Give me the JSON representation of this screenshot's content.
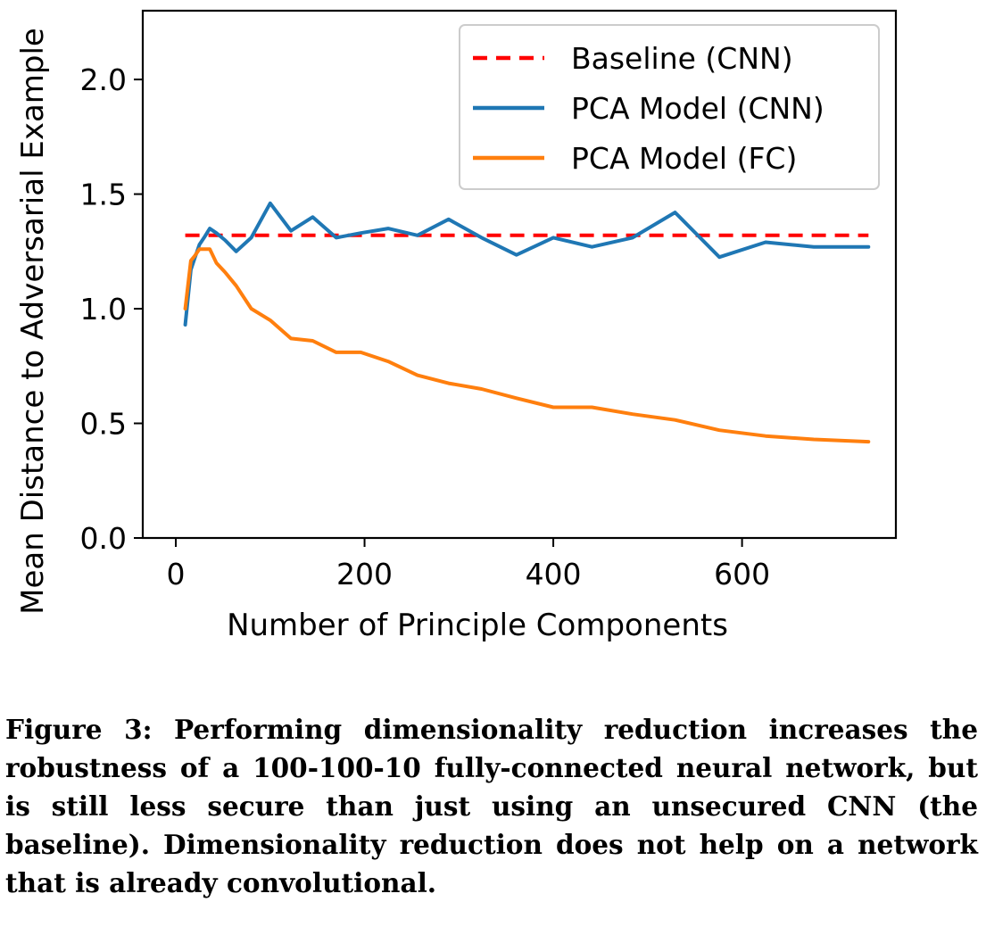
{
  "chart_data": {
    "type": "line",
    "xlabel": "Number of Principle Components",
    "ylabel": "Mean Distance to Adversarial Example",
    "xlim": [
      -35,
      763
    ],
    "ylim": [
      0.0,
      2.3
    ],
    "xticks": [
      0,
      200,
      400,
      600
    ],
    "xtick_labels": [
      "0",
      "200",
      "400",
      "600"
    ],
    "yticks": [
      0.0,
      0.5,
      1.0,
      1.5,
      2.0
    ],
    "ytick_labels": [
      "0.0",
      "0.5",
      "1.0",
      "1.5",
      "2.0"
    ],
    "grid": false,
    "legend_position": "top-right",
    "series": [
      {
        "name": "Baseline (CNN)",
        "style": "dashed",
        "color": "#ff0000",
        "x": [
          10,
          734
        ],
        "y": [
          1.32,
          1.32
        ]
      },
      {
        "name": "PCA Model (CNN)",
        "style": "solid",
        "color": "#1f77b4",
        "x": [
          10,
          16,
          20,
          25,
          30,
          36,
          43,
          52,
          64,
          80,
          100,
          122,
          145,
          170,
          196,
          225,
          256,
          289,
          324,
          361,
          400,
          441,
          484,
          529,
          576,
          625,
          676,
          734
        ],
        "y": [
          0.93,
          1.17,
          1.22,
          1.28,
          1.31,
          1.35,
          1.33,
          1.3,
          1.25,
          1.31,
          1.46,
          1.34,
          1.4,
          1.31,
          1.33,
          1.35,
          1.32,
          1.39,
          1.31,
          1.235,
          1.31,
          1.27,
          1.31,
          1.42,
          1.225,
          1.29,
          1.27,
          1.27
        ]
      },
      {
        "name": "PCA Model (FC)",
        "style": "solid",
        "color": "#ff7f0e",
        "x": [
          10,
          16,
          20,
          25,
          30,
          36,
          43,
          52,
          64,
          80,
          100,
          122,
          145,
          170,
          196,
          225,
          256,
          289,
          324,
          361,
          400,
          441,
          484,
          529,
          576,
          625,
          676,
          734
        ],
        "y": [
          1.0,
          1.21,
          1.23,
          1.26,
          1.26,
          1.26,
          1.2,
          1.16,
          1.1,
          1.0,
          0.95,
          0.87,
          0.86,
          0.81,
          0.81,
          0.77,
          0.71,
          0.675,
          0.65,
          0.61,
          0.57,
          0.57,
          0.54,
          0.515,
          0.47,
          0.445,
          0.43,
          0.42
        ]
      }
    ]
  },
  "caption": "Figure 3: Performing dimensionality reduction increases the robustness of a 100-100-10 fully-connected neural network, but is still less secure than just using an unsecured CNN (the baseline). Dimensionality reduction does not help on a network that is already convolutional."
}
